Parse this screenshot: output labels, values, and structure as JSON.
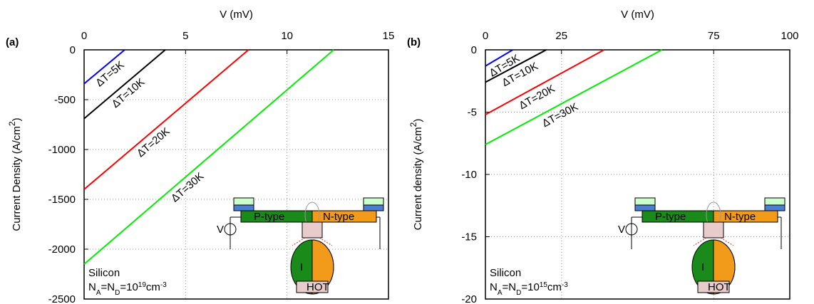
{
  "chart_data": [
    {
      "type": "line",
      "panel_label": "(a)",
      "x_label": "V (mV)",
      "y_label": [
        {
          "text": "Current Density (A/cm"
        },
        {
          "sup": "2"
        },
        {
          "text": ")"
        }
      ],
      "xlim": [
        0,
        15
      ],
      "xticks": [
        0,
        5,
        10,
        15
      ],
      "ylim": [
        -2500,
        0
      ],
      "yticks": [
        0,
        -500,
        -1000,
        -1500,
        -2000,
        -2500
      ],
      "grid": true,
      "series": [
        {
          "name": "ΔT=5K",
          "color": "#0000ff",
          "x": [
            0,
            2
          ],
          "values": [
            -340,
            0
          ]
        },
        {
          "name": "ΔT=10K",
          "color": "#000000",
          "x": [
            0,
            4
          ],
          "values": [
            -690,
            0
          ]
        },
        {
          "name": "ΔT=20K",
          "color": "#ff0000",
          "x": [
            0,
            8.1
          ],
          "values": [
            -1400,
            0
          ]
        },
        {
          "name": "ΔT=30K",
          "color": "#00ee00",
          "x": [
            0,
            12.3
          ],
          "values": [
            -2150,
            0
          ]
        }
      ],
      "material": "Silicon",
      "doping": [
        {
          "text": "N"
        },
        {
          "sub": "A"
        },
        {
          "text": "=N"
        },
        {
          "sub": "D"
        },
        {
          "text": "=10"
        },
        {
          "sup": "19"
        },
        {
          "text": "cm"
        },
        {
          "sup": "-3"
        }
      ],
      "inset": {
        "p": "P-type",
        "n": "N-type",
        "v": "V",
        "i": "I",
        "hot": "HOT"
      }
    },
    {
      "type": "line",
      "panel_label": "(b)",
      "x_label": "V (mV)",
      "y_label": [
        {
          "text": "Current density (A/cm"
        },
        {
          "sup": "2"
        },
        {
          "text": ")"
        }
      ],
      "xlim": [
        0,
        100
      ],
      "xticks": [
        0,
        25,
        75,
        100
      ],
      "ylim": [
        -20,
        0
      ],
      "yticks": [
        0,
        -5,
        -10,
        -15,
        -20
      ],
      "grid": true,
      "series": [
        {
          "name": "ΔT=5K",
          "color": "#0000ff",
          "x": [
            0,
            9
          ],
          "values": [
            -1.3,
            0
          ]
        },
        {
          "name": "ΔT=10K",
          "color": "#000000",
          "x": [
            0,
            20
          ],
          "values": [
            -2.6,
            0
          ]
        },
        {
          "name": "ΔT=20K",
          "color": "#ff0000",
          "x": [
            0,
            39
          ],
          "values": [
            -5.2,
            0
          ]
        },
        {
          "name": "ΔT=30K",
          "color": "#00ee00",
          "x": [
            0,
            58
          ],
          "values": [
            -7.6,
            0
          ]
        }
      ],
      "material": "Silicon",
      "doping": [
        {
          "text": "N"
        },
        {
          "sub": "A"
        },
        {
          "text": "=N"
        },
        {
          "sub": "D"
        },
        {
          "text": "=10"
        },
        {
          "sup": "15"
        },
        {
          "text": "cm"
        },
        {
          "sup": "-3"
        }
      ],
      "inset": {
        "p": "P-type",
        "n": "N-type",
        "v": "V",
        "i": "I",
        "hot": "HOT"
      }
    }
  ]
}
